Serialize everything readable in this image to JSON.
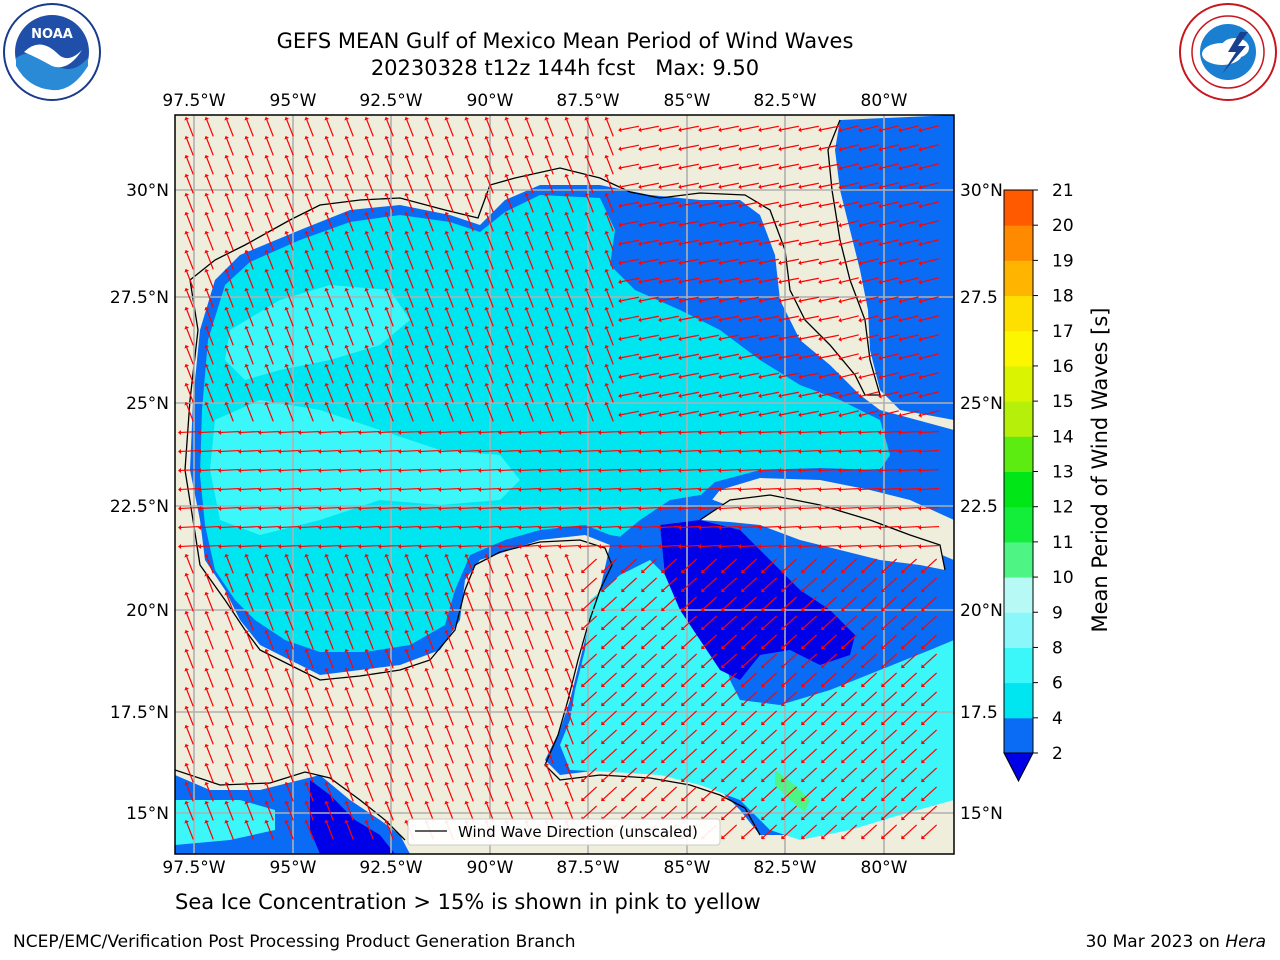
{
  "title": {
    "line1": "GEFS MEAN Gulf of Mexico Mean Period of Wind Waves",
    "line2": "20230328 t12z 144h fcst   Max: 9.50"
  },
  "map": {
    "lon_ticks": [
      "97.5°W",
      "95°W",
      "92.5°W",
      "90°W",
      "87.5°W",
      "85°W",
      "82.5°W",
      "80°W"
    ],
    "lat_ticks_left": [
      "30°N",
      "27.5°N",
      "25°N",
      "22.5°N",
      "20°N",
      "17.5°N",
      "15°N"
    ],
    "lat_ticks_right": [
      "30°N",
      "27.5",
      "25°N",
      "22.5",
      "20°N",
      "17.5",
      "15°N"
    ],
    "legend_label": "Wind Wave Direction (unscaled)",
    "land_color": "#efeedd",
    "arrow_color": "#ff0000"
  },
  "colorbar": {
    "label": "Mean Period of Wind Waves [s]",
    "ticks": [
      "2",
      "4",
      "6",
      "8",
      "9",
      "10",
      "11",
      "12",
      "13",
      "14",
      "15",
      "16",
      "17",
      "18",
      "19",
      "20",
      "21"
    ],
    "colors": [
      "#0a6cf5",
      "#00e6f0",
      "#3cf7fa",
      "#8af8fa",
      "#b7f9f5",
      "#4ef585",
      "#12ee3a",
      "#00e617",
      "#5cec12",
      "#b6ef0a",
      "#daf300",
      "#fcf700",
      "#fee000",
      "#ffb500",
      "#ff8a00",
      "#ff5a00",
      "#ff2a00",
      "#fe0000"
    ],
    "extend_color": "#0000e8"
  },
  "footer": {
    "note": "Sea Ice Concentration > 15% is shown in pink to yellow",
    "left": "NCEP/EMC/Verification Post Processing Product Generation Branch",
    "date": "30 Mar 2023 on ",
    "host": "Hera"
  }
}
